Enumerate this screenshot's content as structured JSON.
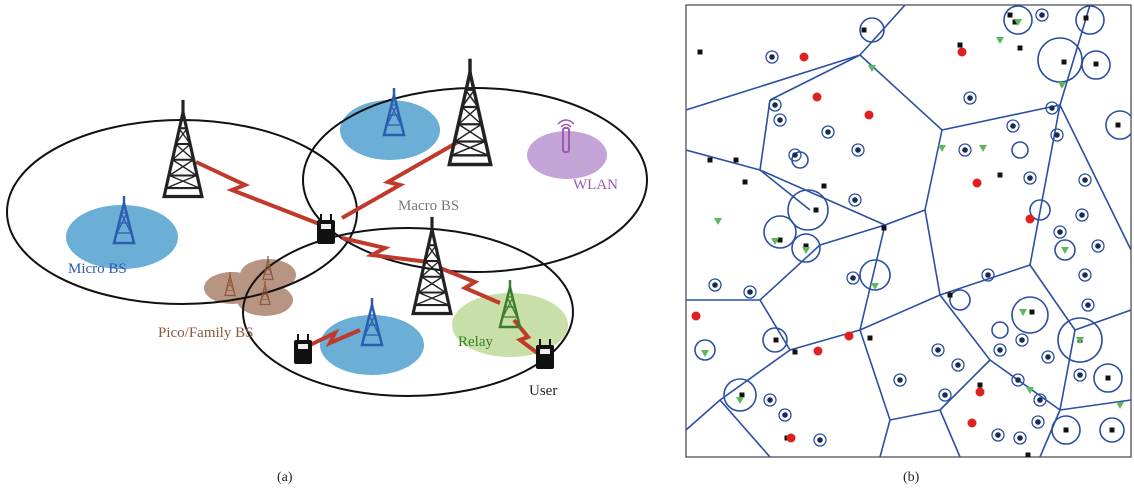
{
  "panel_a": {
    "caption": "(a)",
    "labels": {
      "micro": "Micro BS",
      "macro": "Macro BS",
      "wlan": "WLAN",
      "pico": "Pico/Family BS",
      "relay": "Relay",
      "user": "User"
    },
    "colors": {
      "micro": "#2a5db0",
      "macro": "#777777",
      "wlan": "#9b59b6",
      "pico": "#8b5a3c",
      "relay": "#3a7d2c",
      "user": "#222222",
      "link": "#c0392b",
      "blue_zone": "#6baed6",
      "purple_zone": "#c4a3d6",
      "brown_zone": "#b89483",
      "green_zone": "#c9dfa8"
    }
  },
  "panel_b": {
    "caption": "(b)",
    "colors": {
      "edges": "#2b4fa3",
      "users": "#111111",
      "red_nodes": "#e02020",
      "green_nodes": "#5cb85c",
      "dark_nodes": "#1b2a55"
    }
  }
}
